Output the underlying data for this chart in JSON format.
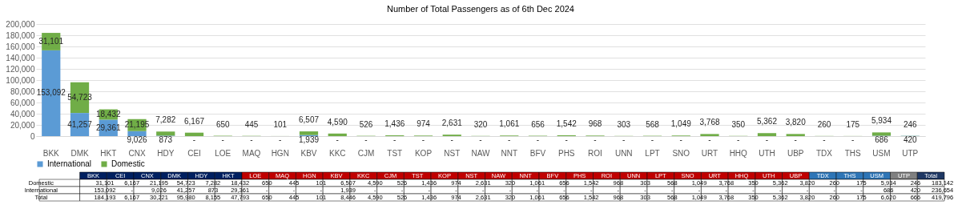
{
  "chart_data": [
    {
      "type": "bar",
      "title": "Number of Total Passengers as of 6th Dec 2024",
      "stacked": true,
      "legend": "bottom",
      "grid": "y",
      "categories": [
        "BKK",
        "DMK",
        "HKT",
        "CNX",
        "HDY",
        "CEI",
        "LOE",
        "MAQ",
        "HGN",
        "KBV",
        "KKC",
        "CJM",
        "TST",
        "KOP",
        "NST",
        "NAW",
        "NNT",
        "BFV",
        "PHS",
        "ROI",
        "UNN",
        "LPT",
        "SNO",
        "URT",
        "HHQ",
        "UTH",
        "UBP",
        "TDX",
        "THS",
        "USM",
        "UTP"
      ],
      "ylim": [
        0,
        200000
      ],
      "yticks": [
        0,
        {
          "value": 20000,
          "label": "20,000"
        },
        {
          "value": 40000,
          "label": "40,000"
        },
        {
          "value": 60000,
          "label": "60,000"
        },
        {
          "value": 80000,
          "label": "80,000"
        },
        {
          "value": 100000,
          "label": "100,000"
        },
        {
          "value": 120000,
          "label": "120,000"
        },
        {
          "value": 140000,
          "label": "140,000"
        },
        {
          "value": 160000,
          "label": "160,000"
        },
        {
          "value": 180000,
          "label": "180,000"
        },
        {
          "value": 200000,
          "label": "200,000"
        }
      ],
      "series": [
        {
          "name": "International",
          "color": "#5b9bd5",
          "values": [
            153092,
            41257,
            29361,
            9026,
            873,
            0,
            0,
            0,
            0,
            1939,
            0,
            0,
            0,
            0,
            0,
            0,
            0,
            0,
            0,
            0,
            0,
            0,
            0,
            0,
            0,
            0,
            0,
            0,
            0,
            686,
            420
          ],
          "value_labels": [
            "153,092",
            "41,257",
            "29,361",
            "9,026",
            "873",
            "-",
            "-",
            "-",
            "-",
            "1,939",
            "-",
            "-",
            "-",
            "-",
            "-",
            "-",
            "-",
            "-",
            "-",
            "-",
            "-",
            "-",
            "-",
            "-",
            "-",
            "-",
            "-",
            "-",
            "-",
            "686",
            "420"
          ]
        },
        {
          "name": "Domestic",
          "color": "#70ad47",
          "values": [
            31101,
            54723,
            18432,
            21195,
            7282,
            6167,
            650,
            445,
            101,
            6507,
            4590,
            526,
            1436,
            974,
            2631,
            320,
            1061,
            656,
            1542,
            968,
            303,
            568,
            1049,
            3768,
            350,
            5362,
            3820,
            260,
            175,
            5934,
            246
          ],
          "value_labels": [
            "31,101",
            "54,723",
            "18,432",
            "21,195",
            "7,282",
            "6,167",
            "650",
            "445",
            "101",
            "6,507",
            "4,590",
            "526",
            "1,436",
            "974",
            "2,631",
            "320",
            "1,061",
            "656",
            "1,542",
            "968",
            "303",
            "568",
            "1,049",
            "3,768",
            "350",
            "5,362",
            "3,820",
            "260",
            "175",
            "5,934",
            "246"
          ]
        }
      ]
    },
    {
      "type": "other",
      "annotations": [
        "Total"
      ],
      "categories": [
        "BKK",
        "CEI",
        "CNX",
        "DMK",
        "HDY",
        "HKT",
        "LOE",
        "MAQ",
        "HGN",
        "KBV",
        "KKC",
        "CJM",
        "TST",
        "KOP",
        "NST",
        "NAW",
        "NNT",
        "BFV",
        "PHS",
        "ROI",
        "UNN",
        "LPT",
        "SNO",
        "URT",
        "HHQ",
        "UTH",
        "UBP",
        "TDX",
        "THS",
        "USM",
        "UTP",
        "Total"
      ],
      "colors": [
        "#002060",
        "#002060",
        "#002060",
        "#002060",
        "#002060",
        "#002060",
        "#c00000",
        "#c00000",
        "#c00000",
        "#c00000",
        "#c00000",
        "#c00000",
        "#c00000",
        "#c00000",
        "#c00000",
        "#c00000",
        "#c00000",
        "#c00000",
        "#c00000",
        "#c00000",
        "#c00000",
        "#c00000",
        "#c00000",
        "#c00000",
        "#c00000",
        "#c00000",
        "#c00000",
        "#2e75b6",
        "#2e75b6",
        "#2e75b6",
        "#808080",
        "#1f3864"
      ],
      "series": [
        {
          "name": "Domestic",
          "values": [
            31101,
            6167,
            21195,
            54723,
            7282,
            18432,
            650,
            445,
            101,
            6507,
            4590,
            526,
            1436,
            974,
            2631,
            320,
            1061,
            656,
            1542,
            968,
            303,
            568,
            1049,
            3768,
            350,
            5362,
            3820,
            260,
            175,
            5934,
            246,
            183142
          ],
          "value_labels": [
            "31,101",
            "6,167",
            "21,195",
            "54,723",
            "7,282",
            "18,432",
            "650",
            "445",
            "101",
            "6,507",
            "4,590",
            "526",
            "1,436",
            "974",
            "2,631",
            "320",
            "1,061",
            "656",
            "1,542",
            "968",
            "303",
            "568",
            "1,049",
            "3,768",
            "350",
            "5,362",
            "3,820",
            "260",
            "175",
            "5,934",
            "246",
            "183,142"
          ]
        },
        {
          "name": "International",
          "values": [
            153092,
            null,
            9026,
            41257,
            873,
            29361,
            null,
            null,
            null,
            1939,
            null,
            null,
            null,
            null,
            null,
            null,
            null,
            null,
            null,
            null,
            null,
            null,
            null,
            null,
            null,
            null,
            null,
            null,
            null,
            686,
            420,
            236654
          ],
          "value_labels": [
            "153,092",
            "-",
            "9,026",
            "41,257",
            "873",
            "29,361",
            "-",
            "-",
            "-",
            "1,939",
            "-",
            "-",
            "-",
            "-",
            "-",
            "-",
            "-",
            "-",
            "-",
            "-",
            "-",
            "-",
            "-",
            "-",
            "-",
            "-",
            "-",
            "-",
            "-",
            "686",
            "420",
            "236,654"
          ]
        }
      ],
      "totals": [
        "184,193",
        "6,167",
        "30,221",
        "95,980",
        "8,155",
        "47,793",
        "650",
        "445",
        "101",
        "8,446",
        "4,590",
        "526",
        "1,436",
        "974",
        "2,631",
        "320",
        "1,061",
        "656",
        "1,542",
        "968",
        "303",
        "568",
        "1,049",
        "3,768",
        "350",
        "5,362",
        "3,820",
        "260",
        "175",
        "6,620",
        "666",
        "419,796"
      ]
    }
  ]
}
